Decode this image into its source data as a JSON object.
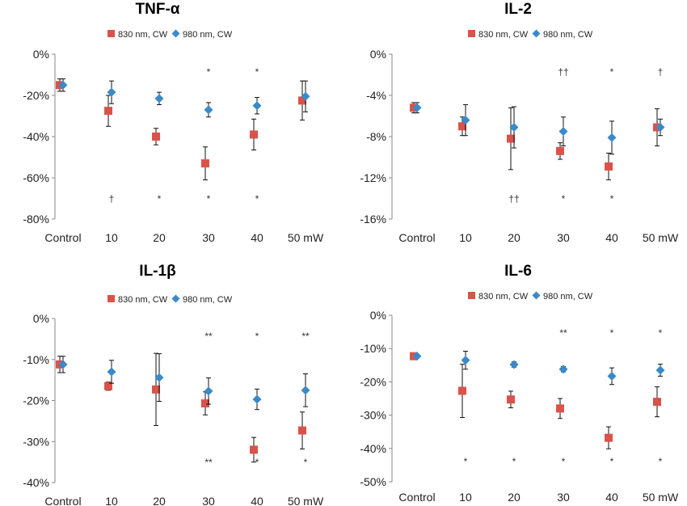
{
  "chart_data": [
    {
      "type": "scatter",
      "title": "TNF-α",
      "categories": [
        "Control",
        "10",
        "20",
        "30",
        "40",
        "50 mW"
      ],
      "ylim": [
        -0.8,
        0
      ],
      "yticks": [
        0,
        -0.2,
        -0.4,
        -0.6,
        -0.8
      ],
      "ytick_labels": [
        "0%",
        "-20%",
        "-40%",
        "-60%",
        "-80%"
      ],
      "legend": "top-center",
      "series": [
        {
          "name": "830 nm, CW",
          "color": "#d9534a",
          "marker": "square",
          "values": [
            -0.15,
            -0.275,
            -0.4,
            -0.53,
            -0.39,
            -0.225
          ],
          "errors": [
            0.03,
            0.075,
            0.04,
            0.08,
            0.075,
            0.095
          ]
        },
        {
          "name": "980 nm, CW",
          "color": "#3a8ac9",
          "marker": "diamond",
          "values": [
            -0.15,
            -0.185,
            -0.215,
            -0.27,
            -0.25,
            -0.205
          ],
          "errors": [
            0.03,
            0.055,
            0.03,
            0.035,
            0.04,
            0.075
          ]
        }
      ],
      "annotations_top": [
        "",
        "",
        "",
        "*",
        "*",
        ""
      ],
      "annotations_bottom": [
        "",
        "†",
        "*",
        "*",
        "*",
        ""
      ]
    },
    {
      "type": "scatter",
      "title": "IL-2",
      "categories": [
        "Control",
        "10",
        "20",
        "30",
        "40",
        "50 mW"
      ],
      "ylim": [
        -0.16,
        0
      ],
      "yticks": [
        0,
        -0.04,
        -0.08,
        -0.12,
        -0.16
      ],
      "ytick_labels": [
        "0%",
        "-4%",
        "-8%",
        "-12%",
        "-16%"
      ],
      "legend": "top-center",
      "series": [
        {
          "name": "830 nm, CW",
          "color": "#d9534a",
          "marker": "square",
          "values": [
            -0.052,
            -0.07,
            -0.082,
            -0.094,
            -0.109,
            -0.071
          ],
          "errors": [
            0.005,
            0.009,
            0.03,
            0.008,
            0.013,
            0.018
          ]
        },
        {
          "name": "980 nm, CW",
          "color": "#3a8ac9",
          "marker": "diamond",
          "values": [
            -0.052,
            -0.064,
            -0.071,
            -0.075,
            -0.081,
            -0.071
          ],
          "errors": [
            0.005,
            0.015,
            0.02,
            0.014,
            0.016,
            0.008
          ]
        }
      ],
      "annotations_top": [
        "",
        "",
        "",
        "††",
        "*",
        "†"
      ],
      "annotations_bottom": [
        "",
        "",
        "††",
        "*",
        "*",
        ""
      ]
    },
    {
      "type": "scatter",
      "title": "IL-1β",
      "categories": [
        "Control",
        "10",
        "20",
        "30",
        "40",
        "50 mW"
      ],
      "ylim": [
        -0.4,
        0
      ],
      "yticks": [
        0,
        -0.1,
        -0.2,
        -0.3,
        -0.4
      ],
      "ytick_labels": [
        "0%",
        "-10%",
        "-20%",
        "-30%",
        "-40%"
      ],
      "legend": "top-center",
      "series": [
        {
          "name": "830 nm, CW",
          "color": "#d9534a",
          "marker": "square",
          "values": [
            -0.112,
            -0.165,
            -0.173,
            -0.207,
            -0.32,
            -0.273
          ],
          "errors": [
            0.02,
            0.01,
            0.088,
            0.028,
            0.03,
            0.045
          ]
        },
        {
          "name": "980 nm, CW",
          "color": "#3a8ac9",
          "marker": "diamond",
          "values": [
            -0.112,
            -0.13,
            -0.144,
            -0.177,
            -0.197,
            -0.175
          ],
          "errors": [
            0.02,
            0.028,
            0.058,
            0.032,
            0.025,
            0.04
          ]
        }
      ],
      "annotations_top": [
        "",
        "",
        "",
        "**",
        "*",
        "**"
      ],
      "annotations_bottom": [
        "",
        "",
        "",
        "**",
        "*",
        "*"
      ]
    },
    {
      "type": "scatter",
      "title": "IL-6",
      "categories": [
        "Control",
        "10",
        "20",
        "30",
        "40",
        "50 mW"
      ],
      "ylim": [
        -0.5,
        0
      ],
      "yticks": [
        0,
        -0.1,
        -0.2,
        -0.3,
        -0.4,
        -0.5
      ],
      "ytick_labels": [
        "0%",
        "-10%",
        "-20%",
        "-30%",
        "-40%",
        "-50%"
      ],
      "legend": "top-center",
      "series": [
        {
          "name": "830 nm, CW",
          "color": "#d9534a",
          "marker": "square",
          "values": [
            -0.123,
            -0.227,
            -0.253,
            -0.28,
            -0.368,
            -0.26
          ],
          "errors": [
            0.003,
            0.08,
            0.025,
            0.03,
            0.033,
            0.045
          ]
        },
        {
          "name": "980 nm, CW",
          "color": "#3a8ac9",
          "marker": "diamond",
          "values": [
            -0.123,
            -0.135,
            -0.148,
            -0.162,
            -0.183,
            -0.165
          ],
          "errors": [
            0.003,
            0.027,
            0.008,
            0.008,
            0.025,
            0.018
          ]
        }
      ],
      "annotations_top": [
        "",
        "",
        "",
        "**",
        "*",
        "*"
      ],
      "annotations_bottom": [
        "",
        "*",
        "*",
        "*",
        "*",
        "*"
      ]
    }
  ]
}
